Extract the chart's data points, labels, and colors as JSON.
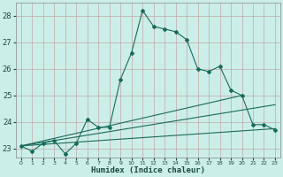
{
  "xlabel": "Humidex (Indice chaleur)",
  "background_color": "#cceee8",
  "grid_color": "#c0a8a8",
  "line_color": "#1a6b5a",
  "xlim": [
    -0.5,
    23.5
  ],
  "ylim": [
    22.65,
    28.5
  ],
  "yticks": [
    23,
    24,
    25,
    26,
    27,
    28
  ],
  "xticks": [
    0,
    1,
    2,
    3,
    4,
    5,
    6,
    7,
    8,
    9,
    10,
    11,
    12,
    13,
    14,
    15,
    16,
    17,
    18,
    19,
    20,
    21,
    22,
    23
  ],
  "line1_x": [
    0,
    1,
    2,
    3,
    4,
    5,
    6,
    7,
    8,
    9,
    10,
    11,
    12,
    13,
    14,
    15,
    16,
    17,
    18,
    19,
    20,
    21,
    22,
    23
  ],
  "line1_y": [
    23.1,
    22.9,
    23.2,
    23.3,
    22.8,
    23.2,
    24.1,
    23.8,
    23.8,
    25.6,
    26.6,
    28.2,
    27.6,
    27.5,
    27.4,
    27.1,
    26.0,
    25.9,
    26.1,
    25.2,
    25.0,
    23.9,
    23.9,
    23.7
  ],
  "line2_x": [
    0,
    20
  ],
  "line2_y": [
    23.1,
    25.0
  ],
  "line3_x": [
    0,
    23
  ],
  "line3_y": [
    23.1,
    24.65
  ],
  "line4_x": [
    0,
    23
  ],
  "line4_y": [
    23.1,
    23.75
  ]
}
